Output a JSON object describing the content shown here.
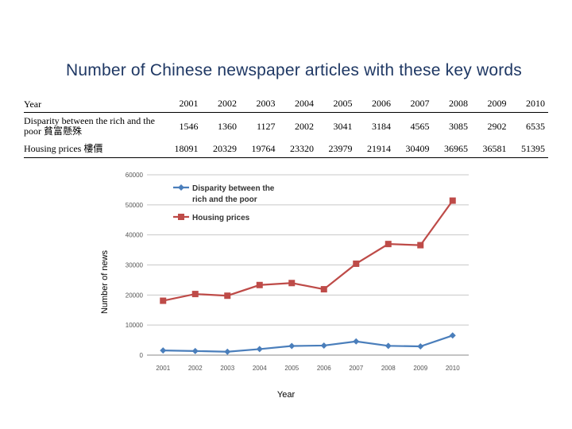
{
  "title": "Number of Chinese newspaper articles with these key words",
  "table": {
    "header_label": "Year",
    "years": [
      "2001",
      "2002",
      "2003",
      "2004",
      "2005",
      "2006",
      "2007",
      "2008",
      "2009",
      "2010"
    ],
    "rows": [
      {
        "label": "Disparity between the rich and the poor 貧富懸殊",
        "values": [
          "1546",
          "1360",
          "1127",
          "2002",
          "3041",
          "3184",
          "4565",
          "3085",
          "2902",
          "6535"
        ]
      },
      {
        "label": "Housing prices 樓價",
        "values": [
          "18091",
          "20329",
          "19764",
          "23320",
          "23979",
          "21914",
          "30409",
          "36965",
          "36581",
          "51395"
        ]
      }
    ]
  },
  "chart_data": {
    "type": "line",
    "x": [
      "2001",
      "2002",
      "2003",
      "2004",
      "2005",
      "2006",
      "2007",
      "2008",
      "2009",
      "2010"
    ],
    "series": [
      {
        "name": "Disparity between the rich and the poor",
        "values": [
          1546,
          1360,
          1127,
          2002,
          3041,
          3184,
          4565,
          3085,
          2902,
          6535
        ],
        "color": "#4a7ebb",
        "marker": "diamond"
      },
      {
        "name": "Housing prices",
        "values": [
          18091,
          20329,
          19764,
          23320,
          23979,
          21914,
          30409,
          36965,
          36581,
          51395
        ],
        "color": "#be4b48",
        "marker": "square"
      }
    ],
    "xlabel": "Year",
    "ylabel": "Number of news",
    "ylim": [
      0,
      60000
    ],
    "yticks": [
      "0",
      "10000",
      "20000",
      "30000",
      "40000",
      "50000",
      "60000"
    ],
    "grid": true,
    "legend": "top-left"
  }
}
